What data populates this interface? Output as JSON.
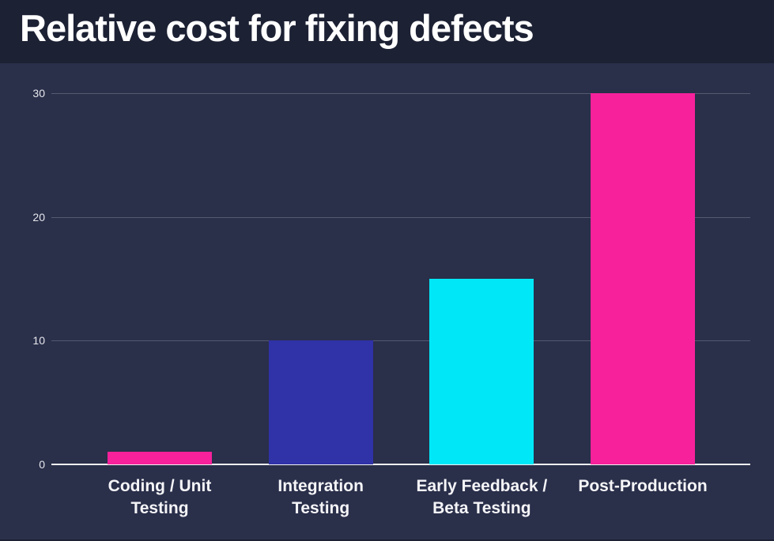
{
  "header": {
    "title": "Relative cost for fixing defects"
  },
  "chart_data": {
    "type": "bar",
    "title": "Relative cost for fixing defects",
    "categories": [
      "Coding / Unit Testing",
      "Integration Testing",
      "Early Feedback / Beta Testing",
      "Post-Production"
    ],
    "category_lines": [
      [
        "Coding / Unit",
        "Testing"
      ],
      [
        "Integration",
        "Testing"
      ],
      [
        "Early Feedback /",
        "Beta Testing"
      ],
      [
        "Post-Production"
      ]
    ],
    "values": [
      1,
      10,
      15,
      30
    ],
    "bar_colors": [
      "#F7219B",
      "#3032A8",
      "#00E8F7",
      "#F7219B"
    ],
    "xlabel": "",
    "ylabel": "",
    "ylim": [
      0,
      30
    ],
    "yticks": [
      0,
      10,
      20,
      30
    ],
    "grid": true,
    "legend": false
  },
  "colors": {
    "outer_background": "#1C2134",
    "panel_background": "#2A2F4A",
    "gridline": "#555A70",
    "zero_line": "#F2F2F2",
    "tick_text": "#E6E7EC",
    "label_text": "#F5F5F8",
    "title_text": "#FFFFFF",
    "pink": "#F7219B",
    "blue": "#3032A8",
    "cyan": "#00E8F7"
  }
}
